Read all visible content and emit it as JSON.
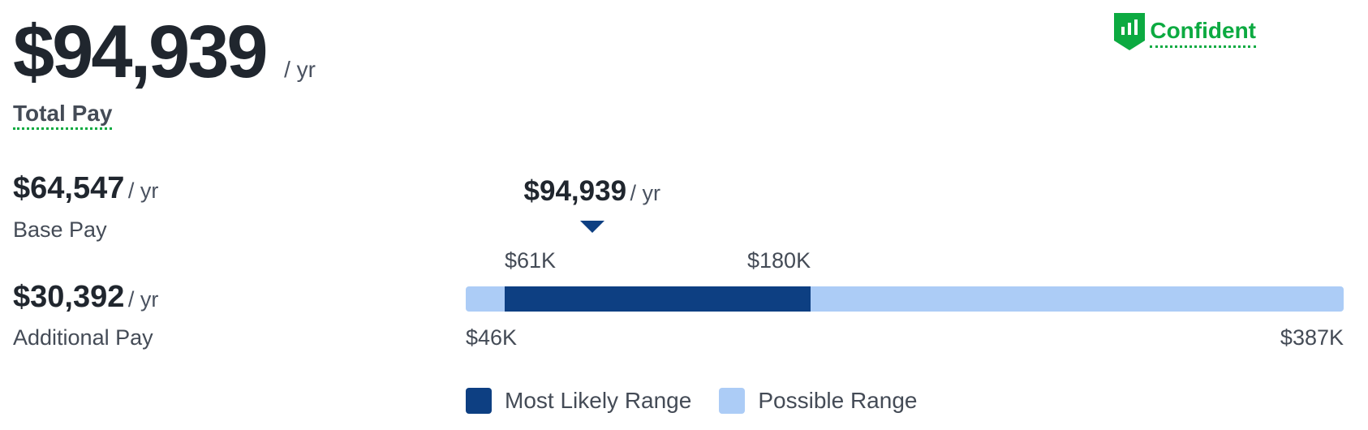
{
  "total": {
    "value": "$94,939",
    "unit": "/ yr",
    "label": "Total Pay"
  },
  "confidence": {
    "label": "Confident",
    "icon": "shield-chart-icon",
    "color": "#0caa41"
  },
  "base": {
    "value": "$64,547",
    "unit": "/ yr",
    "label": "Base Pay"
  },
  "additional": {
    "value": "$30,392",
    "unit": "/ yr",
    "label": "Additional Pay"
  },
  "range": {
    "marker_value": "$94,939",
    "marker_unit": "/ yr",
    "marker_amount": 94939,
    "most_likely_low_label": "$61K",
    "most_likely_high_label": "$180K",
    "most_likely_low": 61000,
    "most_likely_high": 180000,
    "possible_low_label": "$46K",
    "possible_high_label": "$387K",
    "possible_low": 46000,
    "possible_high": 387000,
    "most_likely_color": "#0d3f82",
    "possible_color": "#acccf6"
  },
  "legend": {
    "most_likely": "Most Likely Range",
    "possible": "Possible Range"
  }
}
